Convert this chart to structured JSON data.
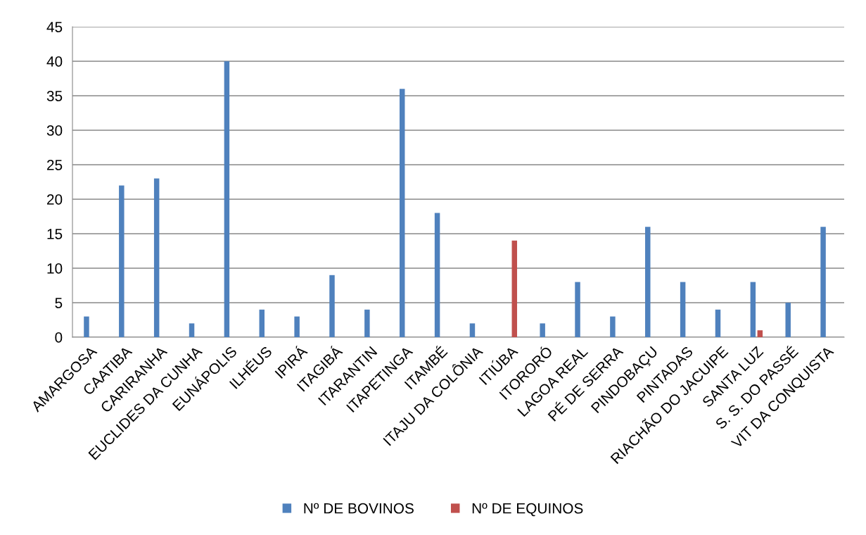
{
  "chart_data": {
    "type": "bar",
    "categories": [
      "AMARGOSA",
      "CAATIBA",
      "CARIRANHA",
      "EUCLIDES DA CUNHA",
      "EUNÁPOLIS",
      "ILHÉUS",
      "IPIRÁ",
      "ITAGIBÁ",
      "ITARANTIN",
      "ITAPETINGA",
      "ITAMBÉ",
      "ITAJU DA COLÔNIA",
      "ITIÚBA",
      "ITORORÓ",
      "LAGOA REAL",
      "PÉ DE SERRA",
      "PINDOBAÇU",
      "PINTADAS",
      "RIACHÃO DO JACUIPE",
      "SANTA LUZ",
      "S. S. DO PASSÉ",
      "VIT DA CONQUISTA"
    ],
    "series": [
      {
        "name": "Nº DE BOVINOS",
        "color": "#4f81bd",
        "values": [
          3,
          22,
          23,
          2,
          40,
          4,
          3,
          9,
          4,
          36,
          18,
          2,
          null,
          2,
          8,
          3,
          16,
          8,
          4,
          8,
          5,
          16
        ]
      },
      {
        "name": "Nº DE EQUINOS",
        "color": "#c0504d",
        "values": [
          null,
          null,
          null,
          null,
          null,
          null,
          null,
          null,
          null,
          null,
          null,
          null,
          14,
          null,
          null,
          null,
          null,
          null,
          null,
          1,
          null,
          null
        ]
      }
    ],
    "ylim": [
      0,
      45
    ],
    "yticks": [
      0,
      5,
      10,
      15,
      20,
      25,
      30,
      35,
      40,
      45
    ],
    "grid": "y",
    "legend": "bottom"
  }
}
